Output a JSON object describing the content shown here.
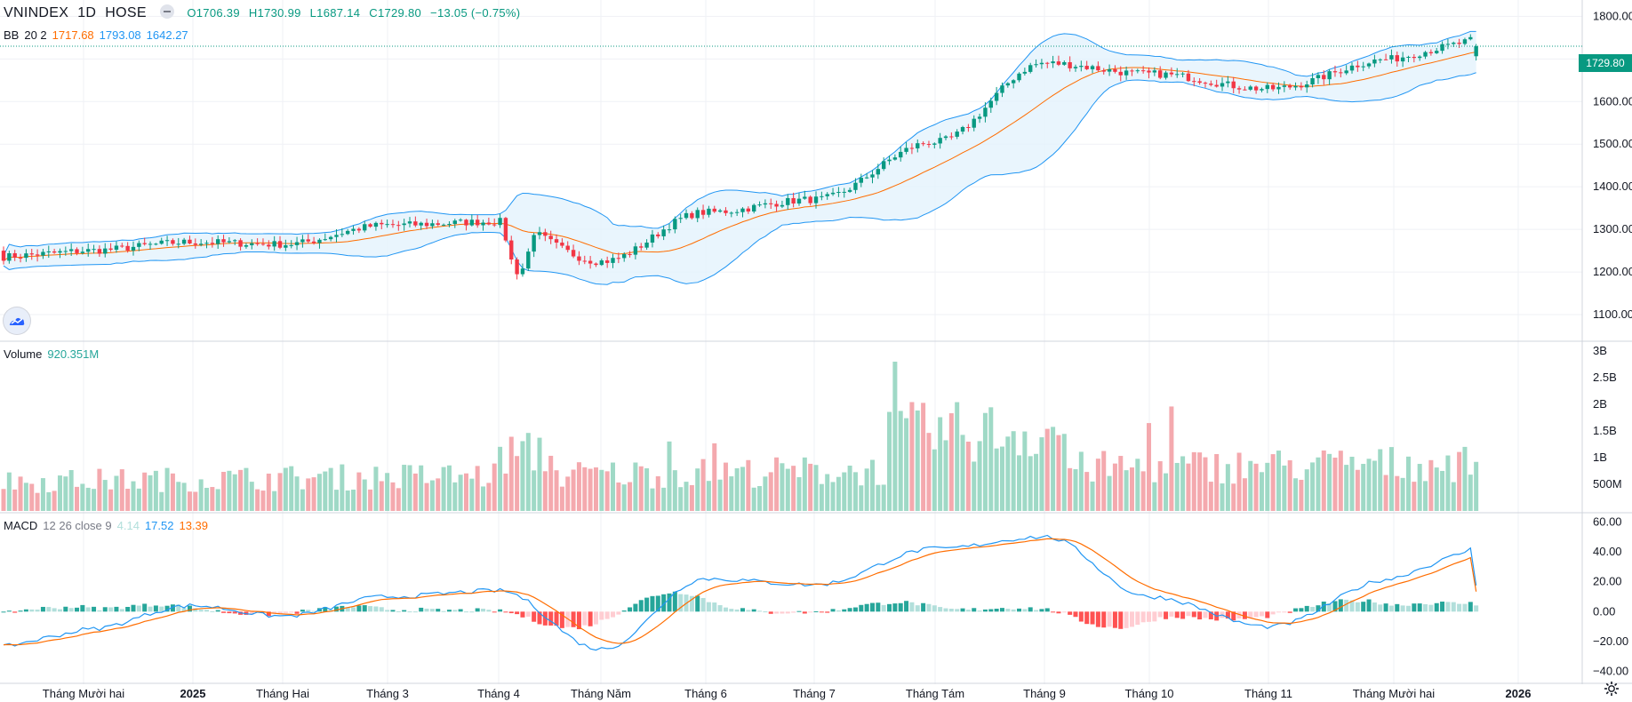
{
  "header": {
    "symbol": "VNINDEX",
    "interval": "1D",
    "exchange": "HOSE",
    "open": "O1706.39",
    "high": "H1730.99",
    "low": "L1687.14",
    "close": "C1729.80",
    "change": "−13.05 (−0.75%)"
  },
  "bb_legend": {
    "name": "BB",
    "params": "20 2",
    "basis": "1717.68",
    "upper": "1793.08",
    "lower": "1642.27"
  },
  "volume_legend": {
    "name": "Volume",
    "value": "920.351M"
  },
  "macd_legend": {
    "name": "MACD",
    "params": "12 26 close 9",
    "hist": "4.14",
    "macd": "17.52",
    "signal": "13.39"
  },
  "last_price_label": "1729.80",
  "colors": {
    "up": "#089981",
    "down": "#f23645",
    "vol_up": "#9fd9c6",
    "vol_down": "#f4a9ae",
    "bb_band": "#2196f3",
    "bb_basis": "#ff6d00",
    "bb_fill": "#e3f2fd",
    "macd_line": "#2196f3",
    "signal_line": "#ff6d00",
    "grid": "#eff1f5",
    "axis_text": "#131722"
  },
  "icons": [
    "collapse-legend-icon",
    "tradingview-logo-icon",
    "settings-gear-icon"
  ],
  "chart_data": [
    {
      "type": "candlestick",
      "title": "VNINDEX 1D HOSE",
      "ylim": [
        1050,
        1830
      ],
      "yticks": [
        "1100.00",
        "1200.00",
        "1300.00",
        "1400.00",
        "1500.00",
        "1600.00",
        "1700.00",
        "1800.00"
      ],
      "xticks": [
        "Tháng Mười hai",
        "2025",
        "Tháng Hai",
        "Tháng 3",
        "Tháng 4",
        "Tháng Năm",
        "Tháng 6",
        "Tháng 7",
        "Tháng Tám",
        "Tháng 9",
        "Tháng 10",
        "Tháng 11",
        "Tháng Mười hai",
        "2026"
      ],
      "close_series_approx": {
        "x": [
          "Tháng Mười hai",
          "2025",
          "Tháng Hai",
          "Tháng 3",
          "Tháng 4",
          "Tháng Năm",
          "Tháng 6",
          "Tháng 7",
          "Tháng Tám",
          "Tháng 9",
          "Tháng 10",
          "Tháng 11",
          "Tháng Mười hai"
        ],
        "values": [
          1250,
          1270,
          1265,
          1310,
          1318,
          1225,
          1340,
          1370,
          1505,
          1690,
          1665,
          1630,
          1700
        ]
      },
      "last": {
        "open": 1706.39,
        "high": 1730.99,
        "low": 1687.14,
        "close": 1729.8
      },
      "bollinger": {
        "period": 20,
        "mult": 2,
        "basis": 1717.68,
        "upper": 1793.08,
        "lower": 1642.27
      }
    },
    {
      "type": "bar",
      "title": "Volume",
      "ylim": [
        0,
        3000000000
      ],
      "yticks": [
        "500M",
        "1B",
        "1.5B",
        "2B",
        "2.5B",
        "3B"
      ],
      "last_value": "920.351M"
    },
    {
      "type": "line",
      "title": "MACD 12 26 close 9",
      "ylim": [
        -45,
        62
      ],
      "yticks": [
        "−40.00",
        "−20.00",
        "0.00",
        "20.00",
        "40.00",
        "60.00"
      ],
      "macd_approx": {
        "x": [
          "Tháng Mười hai",
          "2025",
          "Tháng Hai",
          "Tháng 3",
          "Tháng 4",
          "Tháng Năm",
          "Tháng 6",
          "Tháng 7",
          "Tháng Tám",
          "Tháng 9",
          "Tháng 10",
          "Tháng 11",
          "Tháng Mười hai"
        ],
        "values": [
          -12,
          4,
          -3,
          10,
          14,
          -25,
          22,
          18,
          42,
          50,
          10,
          -10,
          22
        ]
      },
      "last": {
        "hist": 4.14,
        "macd": 17.52,
        "signal": 13.39
      }
    }
  ]
}
